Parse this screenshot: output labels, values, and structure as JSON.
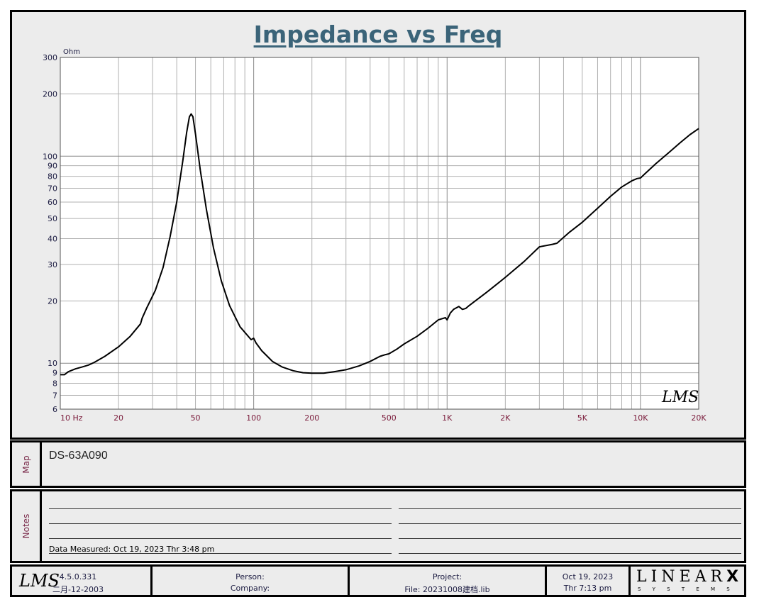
{
  "chart_data": {
    "type": "line",
    "title": "Impedance vs Freq",
    "ylabel": "Ohm",
    "x_scale": "log",
    "y_scale": "log",
    "xlim": [
      10,
      20000
    ],
    "ylim": [
      6,
      300
    ],
    "x_ticks": [
      {
        "value": 10,
        "label": "10  Hz"
      },
      {
        "value": 20,
        "label": "20"
      },
      {
        "value": 50,
        "label": "50"
      },
      {
        "value": 100,
        "label": "100"
      },
      {
        "value": 200,
        "label": "200"
      },
      {
        "value": 500,
        "label": "500"
      },
      {
        "value": 1000,
        "label": "1K"
      },
      {
        "value": 2000,
        "label": "2K"
      },
      {
        "value": 5000,
        "label": "5K"
      },
      {
        "value": 10000,
        "label": "10K"
      },
      {
        "value": 20000,
        "label": "20K"
      }
    ],
    "y_ticks": [
      6,
      7,
      8,
      9,
      10,
      20,
      30,
      40,
      50,
      60,
      70,
      80,
      90,
      100,
      200,
      300
    ],
    "grid": true,
    "line_color": "#000000",
    "tick_label_color": "#7a1a3a",
    "series": [
      {
        "x": [
          10,
          10.5,
          11,
          12,
          13,
          14,
          15,
          17,
          20,
          23,
          26,
          26.5,
          28,
          31,
          34,
          37,
          40,
          43,
          45,
          46.5,
          47.5,
          48.5,
          50,
          53,
          57,
          62,
          68,
          75,
          85,
          97,
          100,
          103,
          110,
          125,
          140,
          160,
          180,
          200,
          230,
          260,
          300,
          350,
          400,
          450,
          480,
          500,
          550,
          600,
          700,
          800,
          900,
          980,
          1000,
          1040,
          1080,
          1150,
          1200,
          1250,
          1300,
          1400,
          1600,
          1800,
          2000,
          2500,
          3000,
          3500,
          3700,
          4000,
          4300,
          5000,
          6000,
          7000,
          8000,
          9000,
          9600,
          10000,
          10500,
          12000,
          14000,
          16000,
          18000,
          20000
        ],
        "y": [
          8.8,
          8.8,
          9.1,
          9.4,
          9.6,
          9.8,
          10.1,
          10.8,
          12,
          13.5,
          15.5,
          16.5,
          18.5,
          22.5,
          29,
          41,
          60,
          95,
          130,
          155,
          160,
          155,
          128,
          85,
          55,
          36,
          25,
          19,
          15,
          13,
          13.2,
          12.5,
          11.5,
          10.2,
          9.6,
          9.2,
          9.0,
          8.95,
          8.95,
          9.1,
          9.3,
          9.7,
          10.2,
          10.8,
          11,
          11.1,
          11.7,
          12.4,
          13.5,
          14.8,
          16.2,
          16.6,
          16.2,
          17.5,
          18.2,
          18.8,
          18.2,
          18.4,
          19,
          20,
          22,
          24,
          26,
          31,
          36.5,
          37.5,
          38,
          40.5,
          43,
          48,
          56,
          64,
          71,
          76,
          78,
          78.5,
          82,
          92,
          104,
          116,
          127,
          136
        ]
      }
    ]
  },
  "map": {
    "label": "Map",
    "model": "DS-63A090"
  },
  "notes": {
    "label": "Notes",
    "measured": "Data Measured: Oct 19, 2023  Thr  3:48 pm"
  },
  "footer": {
    "logo": "LMS",
    "version": "4.5.0.331",
    "build_date": "二月-12-2003",
    "person_label": "Person:",
    "company_label": "Company:",
    "project_label": "Project:",
    "file_label": "File: 20231008建档.lib",
    "date": "Oct 19, 2023",
    "time": "Thr  7:13 pm",
    "brand": "LINEAR",
    "brand_x": "X",
    "brand_sub": "S Y S T E M S"
  },
  "watermark_logo": "LMS"
}
